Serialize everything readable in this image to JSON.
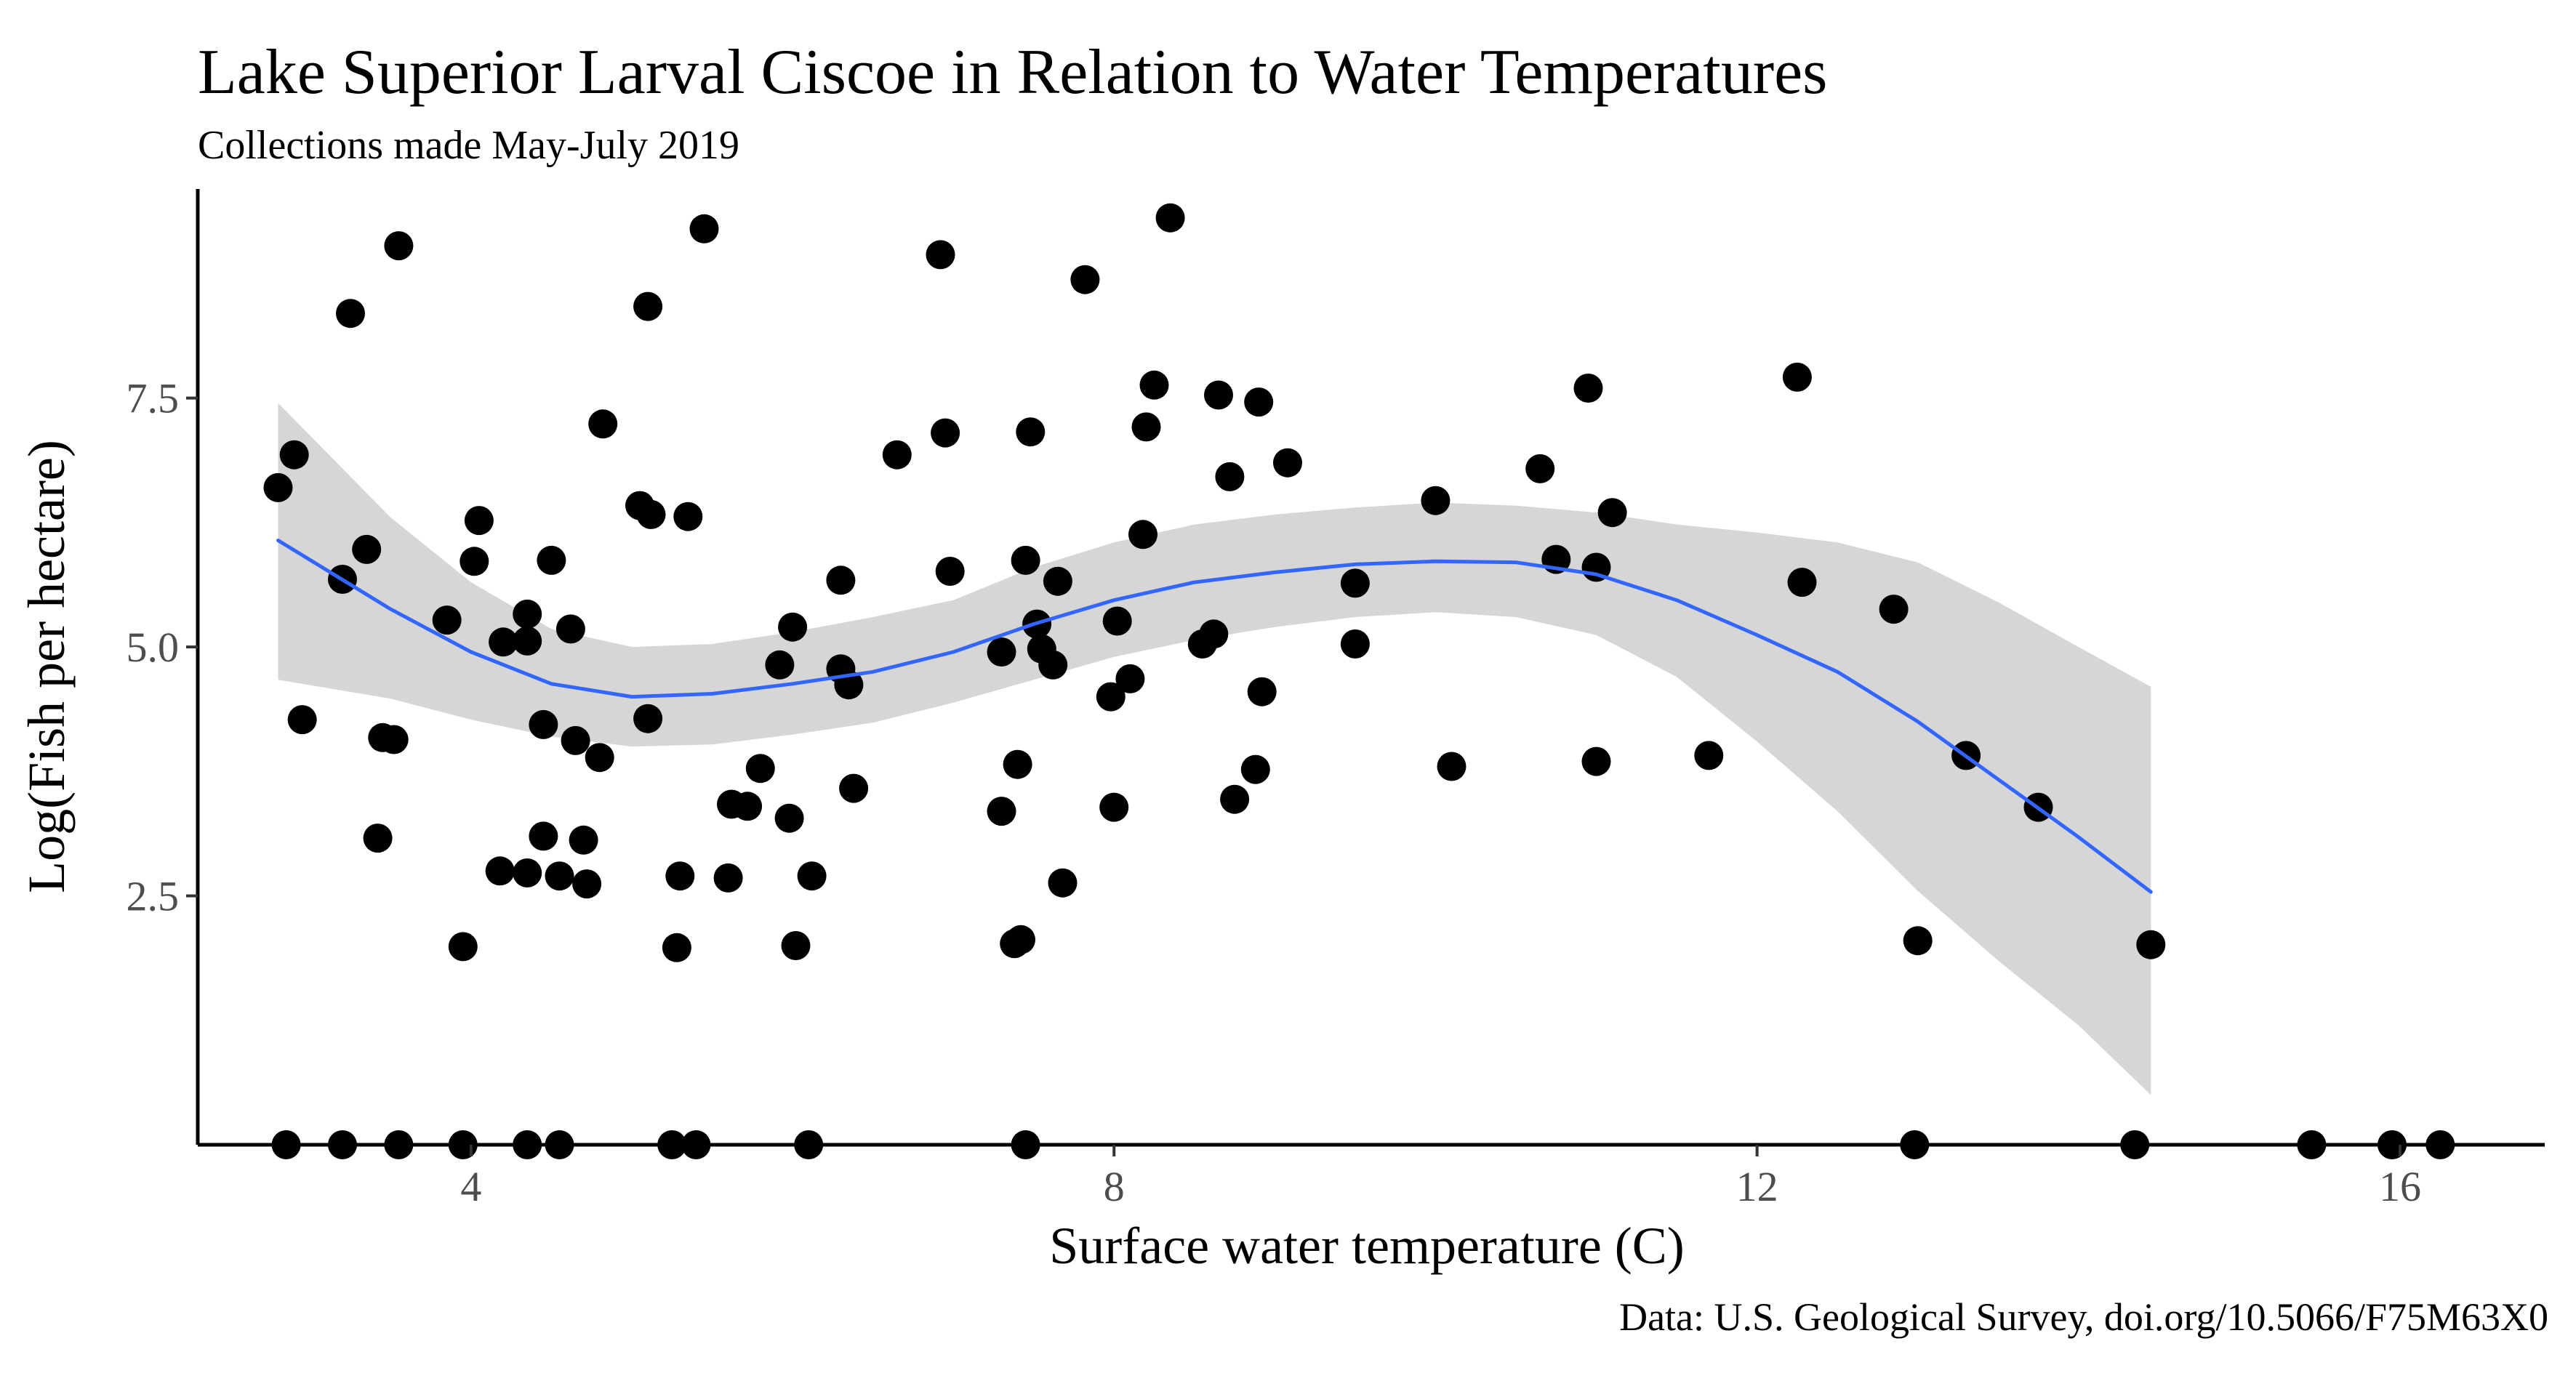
{
  "chart_data": {
    "type": "scatter",
    "title": "Lake Superior Larval Ciscoe in Relation to Water Temperatures",
    "subtitle": "Collections made May-July 2019",
    "caption": "Data: U.S. Geological Survey, doi.org/10.5066/F75M63X0",
    "xlabel": "Surface water temperature (C)",
    "ylabel": "Log(Fish per hectare)",
    "xlim": [
      2.3,
      16.9
    ],
    "ylim": [
      0,
      9.6
    ],
    "x_ticks": [
      4,
      8,
      12,
      16
    ],
    "y_ticks": [
      2.5,
      5.0,
      7.5
    ],
    "x_tick_labels": [
      "4",
      "8",
      "12",
      "16"
    ],
    "y_tick_labels": [
      "2.5",
      "5.0",
      "7.5"
    ],
    "grid": false,
    "colors": {
      "points": "#000000",
      "smooth_line": "#3366FF",
      "ribbon": "#999999"
    },
    "points": [
      [
        2.8,
        6.6
      ],
      [
        2.9,
        6.93
      ],
      [
        3.2,
        5.68
      ],
      [
        3.35,
        5.98
      ],
      [
        3.25,
        8.35
      ],
      [
        3.55,
        9.03
      ],
      [
        2.95,
        4.27
      ],
      [
        3.45,
        4.09
      ],
      [
        3.52,
        4.07
      ],
      [
        3.42,
        3.08
      ],
      [
        3.85,
        5.27
      ],
      [
        4.02,
        5.86
      ],
      [
        4.05,
        6.27
      ],
      [
        4.2,
        5.05
      ],
      [
        4.35,
        5.33
      ],
      [
        4.35,
        5.06
      ],
      [
        4.5,
        5.87
      ],
      [
        4.62,
        5.18
      ],
      [
        4.45,
        4.22
      ],
      [
        4.65,
        4.06
      ],
      [
        4.8,
        3.89
      ],
      [
        4.45,
        3.1
      ],
      [
        4.7,
        3.06
      ],
      [
        4.18,
        2.75
      ],
      [
        4.35,
        2.73
      ],
      [
        4.55,
        2.7
      ],
      [
        4.72,
        2.62
      ],
      [
        3.95,
        1.99
      ],
      [
        4.82,
        7.24
      ],
      [
        5.1,
        8.42
      ],
      [
        5.05,
        6.42
      ],
      [
        5.12,
        6.33
      ],
      [
        5.35,
        6.31
      ],
      [
        5.1,
        4.28
      ],
      [
        5.3,
        2.7
      ],
      [
        5.28,
        1.98
      ],
      [
        5.45,
        9.2
      ],
      [
        5.62,
        3.42
      ],
      [
        5.72,
        3.4
      ],
      [
        5.6,
        2.68
      ],
      [
        5.8,
        3.78
      ],
      [
        5.92,
        4.82
      ],
      [
        6.0,
        5.2
      ],
      [
        5.98,
        3.28
      ],
      [
        6.02,
        2.0
      ],
      [
        6.12,
        2.7
      ],
      [
        6.3,
        5.67
      ],
      [
        6.3,
        4.78
      ],
      [
        6.35,
        4.62
      ],
      [
        6.38,
        3.58
      ],
      [
        6.65,
        6.93
      ],
      [
        6.92,
        8.94
      ],
      [
        6.95,
        7.15
      ],
      [
        6.98,
        5.76
      ],
      [
        7.3,
        4.95
      ],
      [
        7.3,
        3.35
      ],
      [
        7.4,
        3.82
      ],
      [
        7.38,
        2.02
      ],
      [
        7.42,
        2.06
      ],
      [
        7.45,
        5.87
      ],
      [
        7.48,
        7.16
      ],
      [
        7.52,
        5.23
      ],
      [
        7.55,
        4.98
      ],
      [
        7.62,
        4.82
      ],
      [
        7.65,
        5.66
      ],
      [
        7.68,
        2.63
      ],
      [
        7.82,
        8.69
      ],
      [
        7.98,
        4.5
      ],
      [
        8.0,
        3.39
      ],
      [
        8.02,
        5.26
      ],
      [
        8.1,
        4.68
      ],
      [
        8.18,
        6.13
      ],
      [
        8.2,
        7.21
      ],
      [
        8.25,
        7.63
      ],
      [
        8.35,
        9.31
      ],
      [
        8.55,
        5.03
      ],
      [
        8.62,
        5.13
      ],
      [
        8.65,
        7.53
      ],
      [
        8.72,
        6.71
      ],
      [
        8.75,
        3.47
      ],
      [
        8.88,
        3.77
      ],
      [
        8.9,
        7.46
      ],
      [
        8.92,
        4.55
      ],
      [
        9.08,
        6.85
      ],
      [
        9.5,
        5.64
      ],
      [
        9.5,
        5.03
      ],
      [
        10.0,
        6.47
      ],
      [
        10.1,
        3.8
      ],
      [
        10.65,
        6.79
      ],
      [
        10.75,
        5.88
      ],
      [
        10.95,
        7.6
      ],
      [
        11.0,
        5.8
      ],
      [
        11.0,
        3.85
      ],
      [
        11.1,
        6.35
      ],
      [
        11.7,
        3.91
      ],
      [
        12.25,
        7.71
      ],
      [
        12.28,
        5.65
      ],
      [
        12.85,
        5.38
      ],
      [
        13.0,
        2.05
      ],
      [
        13.3,
        3.91
      ],
      [
        13.75,
        3.39
      ],
      [
        14.45,
        2.01
      ],
      [
        2.85,
        0
      ],
      [
        3.2,
        0
      ],
      [
        3.55,
        0
      ],
      [
        3.95,
        0
      ],
      [
        4.35,
        0
      ],
      [
        4.55,
        0
      ],
      [
        5.25,
        0
      ],
      [
        5.4,
        0
      ],
      [
        6.1,
        0
      ],
      [
        7.45,
        0
      ],
      [
        12.98,
        0
      ],
      [
        14.35,
        0
      ],
      [
        15.45,
        0
      ],
      [
        15.95,
        0
      ],
      [
        16.25,
        0
      ]
    ],
    "smooth_fit": {
      "method": "loess",
      "x": [
        2.8,
        3.5,
        4.0,
        4.5,
        5.0,
        5.5,
        6.0,
        6.5,
        7.0,
        7.5,
        8.0,
        8.5,
        9.0,
        9.5,
        10.0,
        10.5,
        11.0,
        11.5,
        12.0,
        12.5,
        13.0,
        13.5,
        14.0,
        14.45
      ],
      "y": [
        6.07,
        5.38,
        4.95,
        4.63,
        4.5,
        4.53,
        4.63,
        4.75,
        4.95,
        5.23,
        5.47,
        5.65,
        5.75,
        5.83,
        5.86,
        5.85,
        5.73,
        5.47,
        5.12,
        4.75,
        4.25,
        3.67,
        3.09,
        2.54
      ],
      "lower": [
        4.67,
        4.48,
        4.27,
        4.1,
        4.0,
        4.02,
        4.12,
        4.24,
        4.44,
        4.67,
        4.9,
        5.07,
        5.2,
        5.3,
        5.35,
        5.3,
        5.12,
        4.7,
        4.05,
        3.35,
        2.55,
        1.85,
        1.2,
        0.5
      ],
      "upper": [
        7.45,
        6.3,
        5.65,
        5.18,
        5.0,
        5.03,
        5.15,
        5.3,
        5.47,
        5.8,
        6.05,
        6.23,
        6.33,
        6.4,
        6.45,
        6.42,
        6.35,
        6.23,
        6.15,
        6.05,
        5.85,
        5.45,
        5.0,
        4.6
      ]
    }
  }
}
